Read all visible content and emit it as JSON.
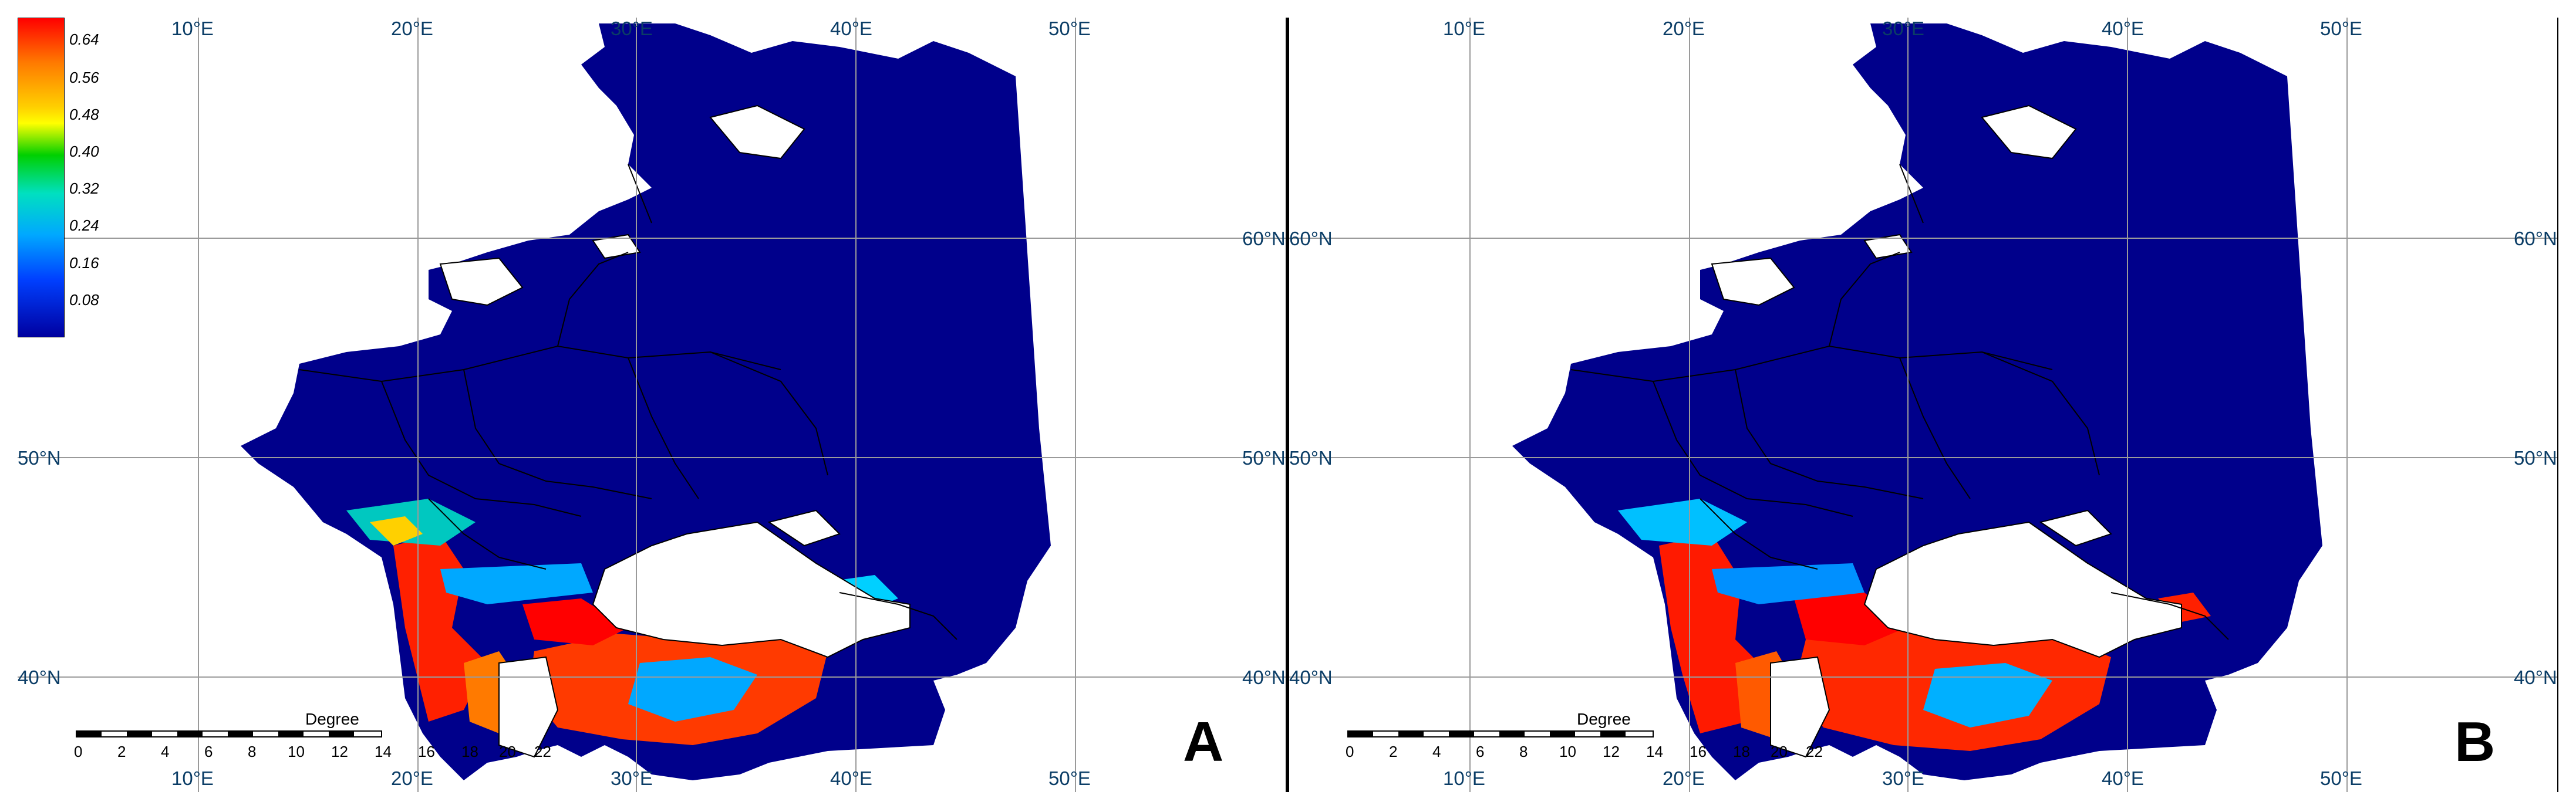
{
  "panels": [
    {
      "id": "A",
      "letter": "A",
      "longitude_labels_top": [
        "10°E",
        "20°E",
        "30°E",
        "40°E",
        "50°E"
      ],
      "longitude_labels_bottom": [
        "10°E",
        "20°E",
        "30°E",
        "40°E",
        "50°E"
      ],
      "latitude_labels": [
        "60°N",
        "50°N",
        "40°N"
      ]
    },
    {
      "id": "B",
      "letter": "B",
      "longitude_labels_top": [
        "10°E",
        "20°E",
        "30°E",
        "40°E",
        "50°E"
      ],
      "longitude_labels_bottom": [
        "10°E",
        "20°E",
        "30°E",
        "40°E",
        "50°E"
      ],
      "latitude_labels": [
        "60°N",
        "50°N",
        "40°N"
      ]
    }
  ],
  "legend": {
    "ticks": [
      "0.64",
      "0.56",
      "0.48",
      "0.40",
      "0.32",
      "0.24",
      "0.16",
      "0.08"
    ],
    "colors": {
      "high": "#ff0000",
      "mid_high": "#ffff00",
      "mid": "#00d000",
      "mid_low": "#00a8ff",
      "low": "#0000a0"
    }
  },
  "scalebar": {
    "title": "Degree",
    "numbers": [
      "0",
      "2",
      "4",
      "6",
      "8",
      "10",
      "12",
      "14",
      "16",
      "18",
      "20",
      "22"
    ]
  },
  "colors": {
    "land_low": "#00008b",
    "sea": "#ffffff",
    "graticule": "#9a9a9a",
    "label": "#0b3d66"
  }
}
